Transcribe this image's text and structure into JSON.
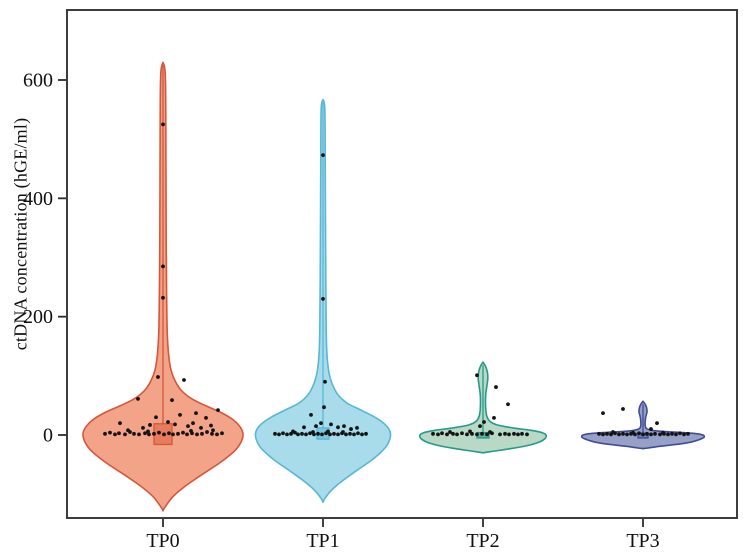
{
  "figure": {
    "background": "#ffffff",
    "frame_color": "#3d3d3d",
    "tick_color": "#2b2b2b",
    "text_color": "#111111"
  },
  "chart_data": {
    "type": "violin",
    "title": "",
    "xlabel": "",
    "ylabel": "ctDNA concentration (hGE/ml)",
    "categories": [
      "TP0",
      "TP1",
      "TP2",
      "TP3"
    ],
    "y_ticks": [
      0,
      200,
      400,
      600
    ],
    "ylim": [
      -142,
      720
    ],
    "grid": false,
    "legend": "none",
    "point_color": "#141414",
    "point_radius": 1.9,
    "groups": [
      {
        "name": "TP0",
        "fill": "#f3a388",
        "stroke": "#d4573a",
        "violin_peak": 630,
        "box": {
          "top": 19,
          "bottom": -16,
          "halfwidth": 9,
          "fill": "#e87a5e"
        },
        "profile": [
          [
            630,
            0
          ],
          [
            612,
            2.2
          ],
          [
            540,
            2.8
          ],
          [
            430,
            3
          ],
          [
            330,
            3.2
          ],
          [
            240,
            3.6
          ],
          [
            175,
            4.2
          ],
          [
            138,
            5.5
          ],
          [
            110,
            8
          ],
          [
            92,
            12
          ],
          [
            76,
            18
          ],
          [
            62,
            28
          ],
          [
            50,
            42
          ],
          [
            38,
            58
          ],
          [
            26,
            70
          ],
          [
            14,
            77
          ],
          [
            2,
            80
          ],
          [
            -12,
            78
          ],
          [
            -28,
            71
          ],
          [
            -48,
            56
          ],
          [
            -68,
            38
          ],
          [
            -88,
            21
          ],
          [
            -104,
            10
          ],
          [
            -117,
            4
          ],
          [
            -127,
            0
          ]
        ],
        "points": [
          [
            0,
            525
          ],
          [
            0,
            285
          ],
          [
            0,
            232
          ],
          [
            -5,
            98
          ],
          [
            21,
            93
          ],
          [
            -25,
            61
          ],
          [
            9,
            59
          ],
          [
            55,
            42
          ],
          [
            33,
            37
          ],
          [
            17,
            34
          ],
          [
            -7,
            30
          ],
          [
            43,
            29
          ],
          [
            5,
            22
          ],
          [
            -43,
            20
          ],
          [
            30,
            20
          ],
          [
            12,
            18
          ],
          [
            -13,
            17
          ],
          [
            48,
            16
          ],
          [
            25,
            15
          ],
          [
            38,
            12
          ],
          [
            -20,
            12
          ],
          [
            -35,
            8
          ],
          [
            28,
            7
          ],
          [
            50,
            8
          ],
          [
            -15,
            6
          ],
          [
            -33,
            5
          ],
          [
            44,
            5
          ],
          [
            -53,
            4
          ],
          [
            -4,
            4
          ],
          [
            20,
            4
          ],
          [
            -18,
            3
          ],
          [
            6,
            3
          ],
          [
            29,
            3
          ],
          [
            59,
            3
          ],
          [
            -44,
            3
          ],
          [
            -29,
            2
          ],
          [
            -9,
            2
          ],
          [
            15,
            2
          ],
          [
            39,
            2
          ],
          [
            49,
            2
          ],
          [
            -58,
            2
          ],
          [
            -48,
            1
          ],
          [
            -38,
            1
          ],
          [
            -24,
            1
          ],
          [
            -14,
            1
          ],
          [
            1,
            1
          ],
          [
            10,
            1
          ],
          [
            24,
            1
          ],
          [
            34,
            1
          ],
          [
            54,
            1
          ]
        ]
      },
      {
        "name": "TP1",
        "fill": "#a9dceb",
        "stroke": "#58b7d5",
        "violin_peak": 567,
        "box": {
          "top": 12,
          "bottom": -7,
          "halfwidth": 6,
          "fill": "#79c6dd"
        },
        "profile": [
          [
            567,
            0
          ],
          [
            552,
            1.8
          ],
          [
            470,
            2.2
          ],
          [
            360,
            2.5
          ],
          [
            260,
            2.8
          ],
          [
            180,
            3.2
          ],
          [
            135,
            4
          ],
          [
            105,
            6
          ],
          [
            85,
            9.5
          ],
          [
            68,
            15
          ],
          [
            54,
            24
          ],
          [
            42,
            38
          ],
          [
            30,
            52
          ],
          [
            18,
            62
          ],
          [
            6,
            67
          ],
          [
            -6,
            67
          ],
          [
            -22,
            62
          ],
          [
            -42,
            49
          ],
          [
            -62,
            32
          ],
          [
            -82,
            16
          ],
          [
            -96,
            7
          ],
          [
            -107,
            2
          ],
          [
            -113,
            0
          ]
        ],
        "points": [
          [
            0,
            473
          ],
          [
            0,
            230
          ],
          [
            2,
            90
          ],
          [
            1,
            47
          ],
          [
            -12,
            34
          ],
          [
            -2,
            20
          ],
          [
            8,
            18
          ],
          [
            -7,
            15
          ],
          [
            21,
            15
          ],
          [
            -19,
            13
          ],
          [
            15,
            13
          ],
          [
            34,
            12
          ],
          [
            28,
            10
          ],
          [
            -30,
            6
          ],
          [
            5,
            6
          ],
          [
            -10,
            5
          ],
          [
            20,
            5
          ],
          [
            -28,
            4
          ],
          [
            -40,
            3
          ],
          [
            -13,
            3
          ],
          [
            3,
            3
          ],
          [
            19,
            3
          ],
          [
            35,
            3
          ],
          [
            -48,
            2
          ],
          [
            -32,
            2
          ],
          [
            -21,
            2
          ],
          [
            -5,
            2
          ],
          [
            11,
            2
          ],
          [
            27,
            2
          ],
          [
            43,
            2
          ],
          [
            -44,
            1
          ],
          [
            -36,
            1
          ],
          [
            -25,
            1
          ],
          [
            -17,
            1
          ],
          [
            -9,
            1
          ],
          [
            -1,
            1
          ],
          [
            7,
            1
          ],
          [
            15,
            1
          ],
          [
            23,
            1
          ],
          [
            31,
            1
          ],
          [
            39,
            1
          ]
        ]
      },
      {
        "name": "TP2",
        "fill": "#b7d9c5",
        "stroke": "#27998a",
        "violin_peak": 123,
        "box": {
          "top": 4,
          "bottom": -5,
          "halfwidth": 6,
          "fill": "#5cb3a0"
        },
        "profile": [
          [
            123,
            0
          ],
          [
            116,
            2.6
          ],
          [
            106,
            4.4
          ],
          [
            95,
            4.8
          ],
          [
            84,
            4
          ],
          [
            70,
            2.8
          ],
          [
            56,
            2.5
          ],
          [
            42,
            2.8
          ],
          [
            31,
            4
          ],
          [
            23,
            7
          ],
          [
            17,
            14
          ],
          [
            12,
            30
          ],
          [
            8,
            48
          ],
          [
            4,
            59
          ],
          [
            0,
            63
          ],
          [
            -6,
            62
          ],
          [
            -12,
            56
          ],
          [
            -18,
            44
          ],
          [
            -23,
            28
          ],
          [
            -27,
            12
          ],
          [
            -29,
            4
          ],
          [
            -30,
            0
          ]
        ],
        "points": [
          [
            -6,
            101
          ],
          [
            13,
            81
          ],
          [
            25,
            52
          ],
          [
            11,
            29
          ],
          [
            1,
            22
          ],
          [
            -3,
            15
          ],
          [
            -13,
            6
          ],
          [
            -33,
            5
          ],
          [
            7,
            5
          ],
          [
            -41,
            3
          ],
          [
            -21,
            3
          ],
          [
            9,
            3
          ],
          [
            -50,
            2
          ],
          [
            -30,
            2
          ],
          [
            -11,
            2
          ],
          [
            -1,
            2
          ],
          [
            22,
            2
          ],
          [
            31,
            2
          ],
          [
            39,
            2
          ],
          [
            -45,
            1
          ],
          [
            -36,
            1
          ],
          [
            -26,
            1
          ],
          [
            -16,
            1
          ],
          [
            -6,
            1
          ],
          [
            4,
            1
          ],
          [
            17,
            1
          ],
          [
            26,
            1
          ],
          [
            35,
            1
          ],
          [
            44,
            1
          ]
        ]
      },
      {
        "name": "TP3",
        "fill": "#97a1c8",
        "stroke": "#3f4c97",
        "violin_peak": 57,
        "box": {
          "top": 3,
          "bottom": -5,
          "halfwidth": 5,
          "fill": "#6d79b5"
        },
        "profile": [
          [
            57,
            0
          ],
          [
            52,
            2.2
          ],
          [
            46,
            3.6
          ],
          [
            39,
            4
          ],
          [
            31,
            2.8
          ],
          [
            23,
            2.2
          ],
          [
            16,
            2.2
          ],
          [
            11,
            3.5
          ],
          [
            8,
            9
          ],
          [
            6,
            20
          ],
          [
            4,
            40
          ],
          [
            2,
            54
          ],
          [
            0,
            60
          ],
          [
            -4,
            61
          ],
          [
            -8,
            56
          ],
          [
            -13,
            45
          ],
          [
            -17,
            28
          ],
          [
            -20,
            13
          ],
          [
            -22,
            5
          ],
          [
            -23,
            0
          ]
        ],
        "points": [
          [
            -20,
            44
          ],
          [
            -40,
            37
          ],
          [
            14,
            20
          ],
          [
            8,
            10
          ],
          [
            -30,
            5
          ],
          [
            -10,
            4
          ],
          [
            20,
            4
          ],
          [
            -28,
            3
          ],
          [
            -4,
            3
          ],
          [
            37,
            3
          ],
          [
            -44,
            2
          ],
          [
            -36,
            2
          ],
          [
            -20,
            2
          ],
          [
            -12,
            2
          ],
          [
            4,
            2
          ],
          [
            12,
            2
          ],
          [
            21,
            2
          ],
          [
            29,
            2
          ],
          [
            45,
            2
          ],
          [
            -40,
            1
          ],
          [
            -32,
            1
          ],
          [
            -24,
            1
          ],
          [
            -16,
            1
          ],
          [
            -8,
            1
          ],
          [
            0,
            1
          ],
          [
            8,
            1
          ],
          [
            17,
            1
          ],
          [
            25,
            1
          ],
          [
            33,
            1
          ],
          [
            41,
            1
          ]
        ]
      }
    ]
  }
}
